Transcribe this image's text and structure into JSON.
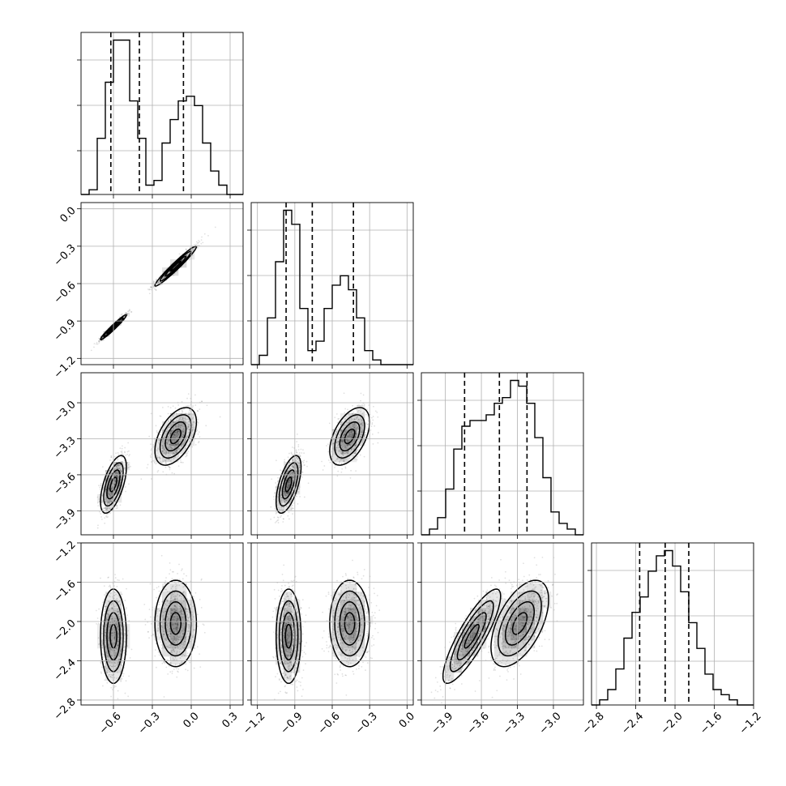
{
  "chart_data": {
    "type": "corner",
    "grid": true,
    "parameters": [
      {
        "range": [
          -0.85,
          0.4
        ],
        "ticks": [
          -0.6,
          -0.3,
          0.0,
          0.3
        ],
        "tick_labels": [
          "−0.6",
          "−0.3",
          "0.0",
          "0.3"
        ],
        "quantiles": [
          -0.62,
          -0.4,
          -0.06
        ]
      },
      {
        "range": [
          -1.25,
          0.05
        ],
        "ticks": [
          -1.2,
          -0.9,
          -0.6,
          -0.3,
          0.0
        ],
        "tick_labels": [
          "−1.2",
          "−0.9",
          "−0.6",
          "−0.3",
          "0.0"
        ],
        "quantiles": [
          -0.97,
          -0.76,
          -0.43
        ]
      },
      {
        "range": [
          -4.1,
          -2.75
        ],
        "ticks": [
          -3.9,
          -3.6,
          -3.3,
          -3.0
        ],
        "tick_labels": [
          "−3.9",
          "−3.6",
          "−3.3",
          "−3.0"
        ],
        "quantiles": [
          -3.74,
          -3.45,
          -3.22
        ]
      },
      {
        "range": [
          -2.85,
          -1.2
        ],
        "ticks": [
          -2.8,
          -2.4,
          -2.0,
          -1.6,
          -1.2
        ],
        "tick_labels": [
          "−2.8",
          "−2.4",
          "−2.0",
          "−1.6",
          "−1.2"
        ],
        "quantiles": [
          -2.36,
          -2.1,
          -1.86
        ]
      }
    ],
    "y_axis_ticks": {
      "1": {
        "ticks": [
          0.0,
          -0.3,
          -0.6,
          -0.9,
          -1.2
        ],
        "tick_labels": [
          "0.0",
          "−0.3",
          "−0.6",
          "−0.9",
          "−1.2"
        ]
      },
      "2": {
        "ticks": [
          -3.0,
          -3.3,
          -3.6,
          -3.9
        ],
        "tick_labels": [
          "−3.0",
          "−3.3",
          "−3.6",
          "−3.9"
        ]
      },
      "3": {
        "ticks": [
          -1.2,
          -1.6,
          -2.0,
          -2.4,
          -2.8
        ],
        "tick_labels": [
          "−1.2",
          "−1.6",
          "−2.0",
          "−2.4",
          "−2.8"
        ]
      }
    },
    "histograms": [
      {
        "bins": 20,
        "counts": [
          0,
          1,
          12,
          24,
          33,
          33,
          20,
          12,
          2,
          3,
          11,
          16,
          20,
          21,
          19,
          11,
          5,
          2,
          0,
          0
        ]
      },
      {
        "bins": 20,
        "counts": [
          0,
          2,
          10,
          22,
          33,
          30,
          12,
          3,
          5,
          12,
          17,
          19,
          16,
          10,
          3,
          1,
          0,
          0,
          0,
          0
        ]
      },
      {
        "bins": 20,
        "counts": [
          0,
          1,
          3,
          8,
          15,
          19,
          20,
          20,
          21,
          23,
          24,
          27,
          26,
          23,
          17,
          10,
          4,
          2,
          1,
          0
        ]
      },
      {
        "bins": 20,
        "counts": [
          0,
          1,
          3,
          7,
          13,
          18,
          21,
          26,
          29,
          30,
          27,
          22,
          16,
          11,
          6,
          3,
          2,
          1,
          0,
          0
        ]
      }
    ],
    "modes": [
      {
        "weight": 0.5,
        "mean": [
          -0.6,
          -0.95,
          -3.68,
          -2.15
        ],
        "sd": [
          0.05,
          0.05,
          0.12,
          0.24
        ],
        "corr": {
          "0-1": 0.97,
          "0-2": 0.6,
          "1-2": 0.6,
          "2-3": 0.85
        }
      },
      {
        "weight": 0.5,
        "mean": [
          -0.12,
          -0.46,
          -3.28,
          -2.02
        ],
        "sd": [
          0.08,
          0.08,
          0.12,
          0.22
        ],
        "corr": {
          "0-1": 0.97,
          "0-2": 0.5,
          "1-2": 0.5,
          "2-3": 0.55
        }
      }
    ]
  }
}
